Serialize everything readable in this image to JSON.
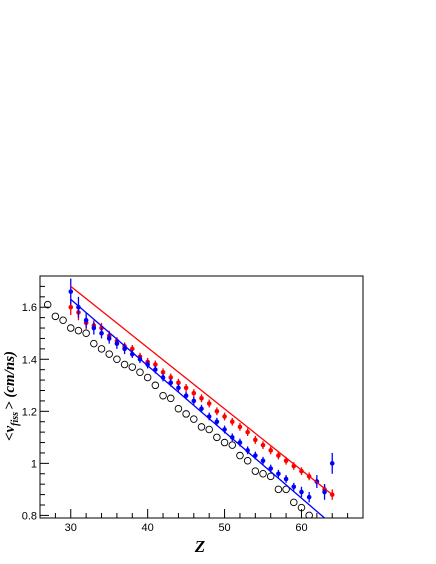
{
  "chart_data": {
    "type": "scatter",
    "xlabel": "Z",
    "ylabel_main": "<v",
    "ylabel_sub": "fiss",
    "ylabel_tail": "> (cm/ns)",
    "xlim": [
      26,
      68
    ],
    "ylim": [
      0.79,
      1.72
    ],
    "x_ticks": [
      30,
      40,
      50,
      60
    ],
    "y_ticks": [
      0.8,
      1.0,
      1.2,
      1.4,
      1.6
    ],
    "y_tick_labels": [
      "0.8",
      "1",
      "1.2",
      "1.4",
      "1.6"
    ],
    "grid": false,
    "colors": {
      "red": "#ff0000",
      "blue": "#0000ff",
      "open": "#000000"
    },
    "series": [
      {
        "style": "open-circles",
        "color": "#000000",
        "points": [
          [
            27,
            1.61
          ],
          [
            28,
            1.565
          ],
          [
            29,
            1.55
          ],
          [
            30,
            1.52
          ],
          [
            31,
            1.51
          ],
          [
            32,
            1.5
          ],
          [
            33,
            1.46
          ],
          [
            34,
            1.44
          ],
          [
            35,
            1.42
          ],
          [
            36,
            1.4
          ],
          [
            37,
            1.38
          ],
          [
            38,
            1.37
          ],
          [
            39,
            1.35
          ],
          [
            40,
            1.33
          ],
          [
            41,
            1.3
          ],
          [
            42,
            1.26
          ],
          [
            43,
            1.25
          ],
          [
            44,
            1.21
          ],
          [
            45,
            1.19
          ],
          [
            46,
            1.17
          ],
          [
            47,
            1.14
          ],
          [
            48,
            1.13
          ],
          [
            49,
            1.1
          ],
          [
            50,
            1.08
          ],
          [
            51,
            1.07
          ],
          [
            52,
            1.03
          ],
          [
            53,
            1.01
          ],
          [
            54,
            0.97
          ],
          [
            55,
            0.96
          ],
          [
            56,
            0.95
          ],
          [
            57,
            0.9
          ],
          [
            58,
            0.9
          ],
          [
            59,
            0.85
          ],
          [
            60,
            0.83
          ],
          [
            61,
            0.8
          ]
        ]
      },
      {
        "style": "filled-points",
        "color": "#ff0000",
        "points": [
          [
            30,
            1.6,
            0.03
          ],
          [
            31,
            1.58,
            0.03
          ],
          [
            32,
            1.54,
            0.025
          ],
          [
            33,
            1.53,
            0.02
          ],
          [
            34,
            1.52,
            0.02
          ],
          [
            35,
            1.49,
            0.02
          ],
          [
            36,
            1.47,
            0.015
          ],
          [
            37,
            1.45,
            0.015
          ],
          [
            38,
            1.44,
            0.015
          ],
          [
            39,
            1.41,
            0.015
          ],
          [
            40,
            1.39,
            0.015
          ],
          [
            41,
            1.38,
            0.015
          ],
          [
            42,
            1.35,
            0.015
          ],
          [
            43,
            1.33,
            0.015
          ],
          [
            44,
            1.31,
            0.015
          ],
          [
            45,
            1.29,
            0.015
          ],
          [
            46,
            1.27,
            0.015
          ],
          [
            47,
            1.25,
            0.015
          ],
          [
            48,
            1.23,
            0.015
          ],
          [
            49,
            1.2,
            0.015
          ],
          [
            50,
            1.18,
            0.015
          ],
          [
            51,
            1.16,
            0.015
          ],
          [
            52,
            1.14,
            0.015
          ],
          [
            53,
            1.12,
            0.015
          ],
          [
            54,
            1.09,
            0.015
          ],
          [
            55,
            1.07,
            0.015
          ],
          [
            56,
            1.05,
            0.015
          ],
          [
            57,
            1.03,
            0.015
          ],
          [
            58,
            1.01,
            0.015
          ],
          [
            59,
            0.99,
            0.015
          ],
          [
            60,
            0.97,
            0.015
          ],
          [
            61,
            0.95,
            0.015
          ],
          [
            62,
            0.93,
            0.015
          ],
          [
            63,
            0.9,
            0.02
          ],
          [
            64,
            0.88,
            0.02
          ]
        ]
      },
      {
        "style": "filled-points",
        "color": "#0000ff",
        "points": [
          [
            30,
            1.66,
            0.05
          ],
          [
            31,
            1.6,
            0.04
          ],
          [
            32,
            1.55,
            0.03
          ],
          [
            33,
            1.52,
            0.025
          ],
          [
            34,
            1.5,
            0.02
          ],
          [
            35,
            1.48,
            0.02
          ],
          [
            36,
            1.46,
            0.02
          ],
          [
            37,
            1.44,
            0.02
          ],
          [
            38,
            1.42,
            0.015
          ],
          [
            39,
            1.4,
            0.015
          ],
          [
            40,
            1.38,
            0.015
          ],
          [
            41,
            1.36,
            0.015
          ],
          [
            42,
            1.33,
            0.015
          ],
          [
            43,
            1.31,
            0.015
          ],
          [
            44,
            1.29,
            0.015
          ],
          [
            45,
            1.26,
            0.015
          ],
          [
            46,
            1.24,
            0.015
          ],
          [
            47,
            1.21,
            0.015
          ],
          [
            48,
            1.18,
            0.015
          ],
          [
            49,
            1.16,
            0.015
          ],
          [
            50,
            1.13,
            0.015
          ],
          [
            51,
            1.1,
            0.015
          ],
          [
            52,
            1.08,
            0.015
          ],
          [
            53,
            1.05,
            0.015
          ],
          [
            54,
            1.03,
            0.015
          ],
          [
            55,
            1.01,
            0.015
          ],
          [
            56,
            0.98,
            0.015
          ],
          [
            57,
            0.96,
            0.015
          ],
          [
            58,
            0.94,
            0.015
          ],
          [
            59,
            0.91,
            0.015
          ],
          [
            60,
            0.89,
            0.02
          ],
          [
            61,
            0.87,
            0.02
          ],
          [
            62,
            0.93,
            0.025
          ],
          [
            63,
            0.89,
            0.03
          ],
          [
            64,
            1.0,
            0.04
          ]
        ]
      },
      {
        "style": "line",
        "color": "#ff0000",
        "points": [
          [
            30,
            1.68
          ],
          [
            64,
            0.88
          ]
        ]
      },
      {
        "style": "line",
        "color": "#0000ff",
        "points": [
          [
            30,
            1.63
          ],
          [
            63,
            0.79
          ]
        ]
      }
    ]
  }
}
